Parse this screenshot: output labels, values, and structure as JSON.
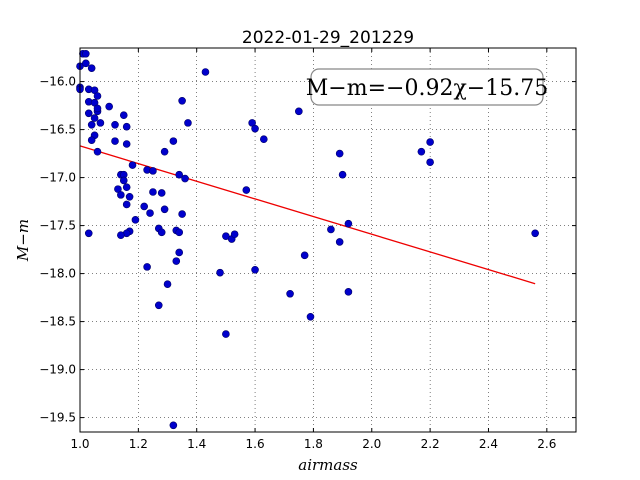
{
  "chart_data": {
    "type": "scatter",
    "title": "2022-01-29_201229",
    "xlabel": "airmass",
    "ylabel": "M−m",
    "xlim": [
      1.0,
      2.7
    ],
    "ylim": [
      -19.65,
      -15.65
    ],
    "y_inverted": true,
    "xticks": [
      1.0,
      1.2,
      1.4,
      1.6,
      1.8,
      2.0,
      2.2,
      2.4,
      2.6
    ],
    "xtick_labels": [
      "1.0",
      "1.2",
      "1.4",
      "1.6",
      "1.8",
      "2.0",
      "2.2",
      "2.4",
      "2.6"
    ],
    "yticks": [
      -16.0,
      -16.5,
      -17.0,
      -17.5,
      -18.0,
      -18.5,
      -19.0,
      -19.5
    ],
    "ytick_labels": [
      "−16.0",
      "−16.5",
      "−17.0",
      "−17.5",
      "−18.0",
      "−18.5",
      "−19.0",
      "−19.5"
    ],
    "grid": true,
    "annotation": "M−m=−0.92χ−15.75",
    "colors": {
      "points": "#0000cc",
      "fit_line": "#ee0000"
    },
    "points": [
      [
        1.0,
        -15.84
      ],
      [
        1.0,
        -16.06
      ],
      [
        1.0,
        -16.08
      ],
      [
        1.01,
        -15.71
      ],
      [
        1.02,
        -15.71
      ],
      [
        1.02,
        -15.81
      ],
      [
        1.03,
        -16.08
      ],
      [
        1.03,
        -16.21
      ],
      [
        1.04,
        -15.86
      ],
      [
        1.03,
        -16.33
      ],
      [
        1.04,
        -16.45
      ],
      [
        1.05,
        -16.09
      ],
      [
        1.05,
        -16.22
      ],
      [
        1.05,
        -16.56
      ],
      [
        1.04,
        -16.61
      ],
      [
        1.05,
        -16.38
      ],
      [
        1.06,
        -16.31
      ],
      [
        1.06,
        -16.15
      ],
      [
        1.06,
        -16.28
      ],
      [
        1.07,
        -16.43
      ],
      [
        1.06,
        -16.73
      ],
      [
        1.03,
        -17.58
      ],
      [
        1.1,
        -16.26
      ],
      [
        1.12,
        -16.45
      ],
      [
        1.12,
        -16.62
      ],
      [
        1.15,
        -16.35
      ],
      [
        1.16,
        -16.47
      ],
      [
        1.16,
        -16.65
      ],
      [
        1.14,
        -16.97
      ],
      [
        1.15,
        -16.97
      ],
      [
        1.15,
        -17.03
      ],
      [
        1.13,
        -17.12
      ],
      [
        1.16,
        -17.1
      ],
      [
        1.14,
        -17.18
      ],
      [
        1.17,
        -17.2
      ],
      [
        1.16,
        -17.28
      ],
      [
        1.18,
        -16.87
      ],
      [
        1.19,
        -17.44
      ],
      [
        1.17,
        -17.56
      ],
      [
        1.16,
        -17.58
      ],
      [
        1.14,
        -17.6
      ],
      [
        1.23,
        -16.92
      ],
      [
        1.25,
        -16.93
      ],
      [
        1.22,
        -17.3
      ],
      [
        1.25,
        -17.15
      ],
      [
        1.24,
        -17.37
      ],
      [
        1.28,
        -17.16
      ],
      [
        1.29,
        -17.33
      ],
      [
        1.27,
        -17.53
      ],
      [
        1.28,
        -17.57
      ],
      [
        1.29,
        -16.73
      ],
      [
        1.32,
        -16.62
      ],
      [
        1.23,
        -17.93
      ],
      [
        1.27,
        -18.33
      ],
      [
        1.3,
        -18.11
      ],
      [
        1.33,
        -17.55
      ],
      [
        1.34,
        -17.57
      ],
      [
        1.34,
        -17.78
      ],
      [
        1.33,
        -17.87
      ],
      [
        1.35,
        -17.38
      ],
      [
        1.34,
        -16.97
      ],
      [
        1.36,
        -17.01
      ],
      [
        1.35,
        -16.2
      ],
      [
        1.37,
        -16.43
      ],
      [
        1.43,
        -15.9
      ],
      [
        1.48,
        -17.99
      ],
      [
        1.5,
        -17.61
      ],
      [
        1.52,
        -17.64
      ],
      [
        1.53,
        -17.59
      ],
      [
        1.5,
        -18.63
      ],
      [
        1.57,
        -17.13
      ],
      [
        1.59,
        -16.43
      ],
      [
        1.6,
        -16.49
      ],
      [
        1.63,
        -16.6
      ],
      [
        1.6,
        -17.96
      ],
      [
        1.72,
        -18.21
      ],
      [
        1.75,
        -16.31
      ],
      [
        1.77,
        -17.81
      ],
      [
        1.79,
        -18.45
      ],
      [
        1.86,
        -17.54
      ],
      [
        1.89,
        -16.75
      ],
      [
        1.89,
        -17.67
      ],
      [
        1.9,
        -16.97
      ],
      [
        1.92,
        -17.48
      ],
      [
        1.92,
        -18.19
      ],
      [
        2.17,
        -16.73
      ],
      [
        2.2,
        -16.63
      ],
      [
        2.2,
        -16.84
      ],
      [
        2.56,
        -17.58
      ],
      [
        1.32,
        -19.58
      ]
    ],
    "fit": {
      "slope": -0.92,
      "intercept": -15.75,
      "x_range": [
        1.0,
        2.56
      ]
    }
  }
}
